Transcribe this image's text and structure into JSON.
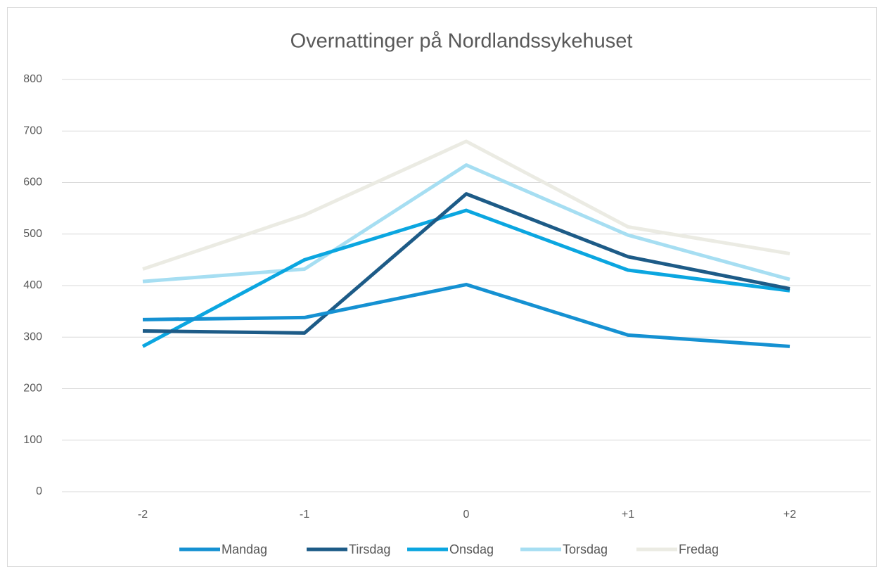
{
  "chart_data": {
    "type": "line",
    "title": "Overnattinger på Nordlandssykehuset",
    "categories": [
      "-2",
      "-1",
      "0",
      "+1",
      "+2"
    ],
    "series": [
      {
        "name": "Mandag",
        "color": "#1591d2",
        "values": [
          334,
          338,
          402,
          304,
          282
        ]
      },
      {
        "name": "Tirsdag",
        "color": "#1d5b87",
        "values": [
          312,
          308,
          578,
          456,
          394
        ]
      },
      {
        "name": "Onsdag",
        "color": "#0ba6e0",
        "values": [
          282,
          450,
          546,
          430,
          390
        ]
      },
      {
        "name": "Torsdag",
        "color": "#a6def2",
        "values": [
          408,
          432,
          634,
          498,
          412
        ]
      },
      {
        "name": "Fredag",
        "color": "#ebebe3",
        "values": [
          432,
          537,
          680,
          514,
          462
        ]
      }
    ],
    "ylim": [
      0,
      800
    ],
    "yticks": [
      0,
      100,
      200,
      300,
      400,
      500,
      600,
      700,
      800
    ],
    "grid": true,
    "legend": "bottom"
  }
}
